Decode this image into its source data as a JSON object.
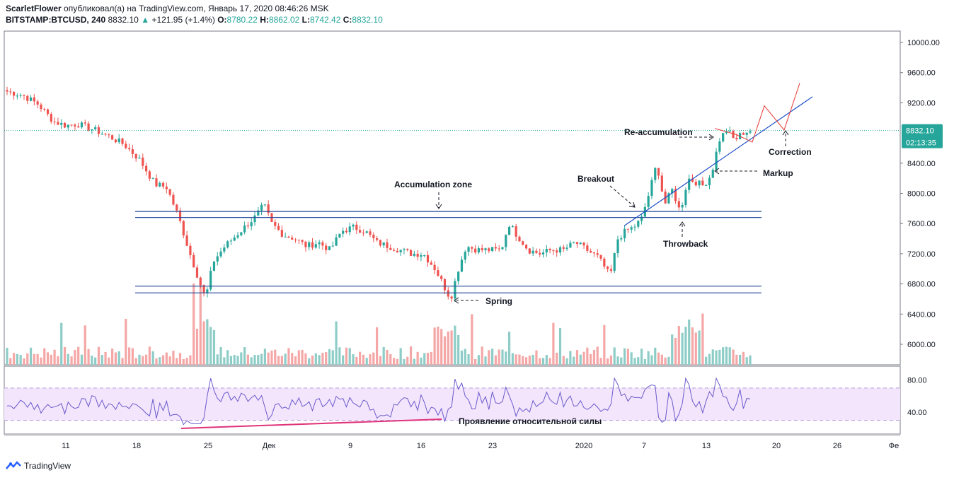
{
  "header": {
    "author": "ScarletFlower",
    "published_text": "опубликовал(а) на TradingView.com, Январь 17, 2020 08:46:26 MSK",
    "symbol": "BITSTAMP:BTCUSD, 240",
    "last": "8832.10",
    "change": "+121.95 (+1.4%)",
    "o_label": "O:",
    "o_value": "8780.22",
    "h_label": "H:",
    "h_value": "8862.02",
    "l_label": "L:",
    "l_value": "8742.42",
    "c_label": "C:",
    "c_value": "8832.10"
  },
  "footer": {
    "logo_text": "TradingView"
  },
  "price_badge": {
    "price": "8832.10",
    "countdown": "02:13:35"
  },
  "colors": {
    "up": "#26a69a",
    "down": "#ef5350",
    "vol_up": "#8ecdc7",
    "vol_down": "#f4a7a6",
    "zone_line": "#2a4d9c",
    "rsi": "#6a5acd",
    "rsi_band": "#f3e5fb",
    "projection": "#e53935",
    "trendline": "#1e50c8",
    "divergence": "#e0337a"
  },
  "chart_data": {
    "type": "candlestick",
    "y_axis": {
      "min": 5700,
      "max": 10200,
      "ticks": [
        6000,
        6400,
        6800,
        7200,
        7600,
        8000,
        8400,
        9200,
        9600,
        10000
      ],
      "tick_labels": [
        "6000.00",
        "6400.00",
        "6800.00",
        "7200.00",
        "7600.00",
        "8000.00",
        "8400.00",
        "9200.00",
        "9600.00",
        "10000.00"
      ]
    },
    "x_axis": {
      "tick_labels": [
        "11",
        "18",
        "25",
        "Дек",
        "9",
        "16",
        "23",
        "2020",
        "7",
        "13",
        "20",
        "26",
        "Фе"
      ]
    },
    "price_path": [
      [
        0,
        9350
      ],
      [
        4,
        9300
      ],
      [
        8,
        9180
      ],
      [
        12,
        8950
      ],
      [
        15,
        8900
      ],
      [
        18,
        8920
      ],
      [
        22,
        8850
      ],
      [
        26,
        8760
      ],
      [
        30,
        8650
      ],
      [
        34,
        8450
      ],
      [
        38,
        8120
      ],
      [
        41,
        8080
      ],
      [
        44,
        7700
      ],
      [
        47,
        7200
      ],
      [
        49,
        6900
      ],
      [
        51,
        6600
      ],
      [
        53,
        7100
      ],
      [
        56,
        7300
      ],
      [
        60,
        7500
      ],
      [
        64,
        7700
      ],
      [
        66,
        7850
      ],
      [
        68,
        7600
      ],
      [
        71,
        7450
      ],
      [
        74,
        7400
      ],
      [
        77,
        7300
      ],
      [
        80,
        7350
      ],
      [
        83,
        7250
      ],
      [
        86,
        7500
      ],
      [
        89,
        7550
      ],
      [
        92,
        7500
      ],
      [
        95,
        7350
      ],
      [
        98,
        7300
      ],
      [
        101,
        7250
      ],
      [
        104,
        7200
      ],
      [
        107,
        7200
      ],
      [
        110,
        7000
      ],
      [
        112,
        6800
      ],
      [
        114,
        6600
      ],
      [
        116,
        7000
      ],
      [
        118,
        7300
      ],
      [
        121,
        7250
      ],
      [
        124,
        7250
      ],
      [
        127,
        7250
      ],
      [
        129,
        7600
      ],
      [
        131,
        7450
      ],
      [
        134,
        7250
      ],
      [
        137,
        7200
      ],
      [
        140,
        7250
      ],
      [
        143,
        7250
      ],
      [
        146,
        7350
      ],
      [
        149,
        7250
      ],
      [
        152,
        7150
      ],
      [
        155,
        6900
      ],
      [
        157,
        7400
      ],
      [
        159,
        7500
      ],
      [
        161,
        7550
      ],
      [
        163,
        7650
      ],
      [
        165,
        8000
      ],
      [
        167,
        8400
      ],
      [
        169,
        7850
      ],
      [
        171,
        8050
      ],
      [
        173,
        7750
      ],
      [
        175,
        8200
      ],
      [
        177,
        8150
      ],
      [
        179,
        8100
      ],
      [
        181,
        8250
      ],
      [
        183,
        8700
      ],
      [
        185,
        8850
      ],
      [
        187,
        8700
      ],
      [
        189,
        8800
      ],
      [
        191,
        8832
      ]
    ],
    "volume_note": "relative volume bars shown below price",
    "zones": [
      {
        "name": "Accumulation zone upper",
        "prices": [
          7760,
          7680
        ]
      },
      {
        "name": "Accumulation zone lower",
        "prices": [
          6770,
          6680
        ]
      }
    ],
    "annotations": [
      {
        "text": "Accumulation zone"
      },
      {
        "text": "Spring"
      },
      {
        "text": "Breakout"
      },
      {
        "text": "Throwback"
      },
      {
        "text": "Re-accumulation"
      },
      {
        "text": "Markup"
      },
      {
        "text": "Correction"
      }
    ],
    "rsi": {
      "ticks": [
        "80.00",
        "40.00"
      ],
      "band": [
        70,
        30
      ],
      "divergence_label": "Проявление относительной силы"
    }
  }
}
